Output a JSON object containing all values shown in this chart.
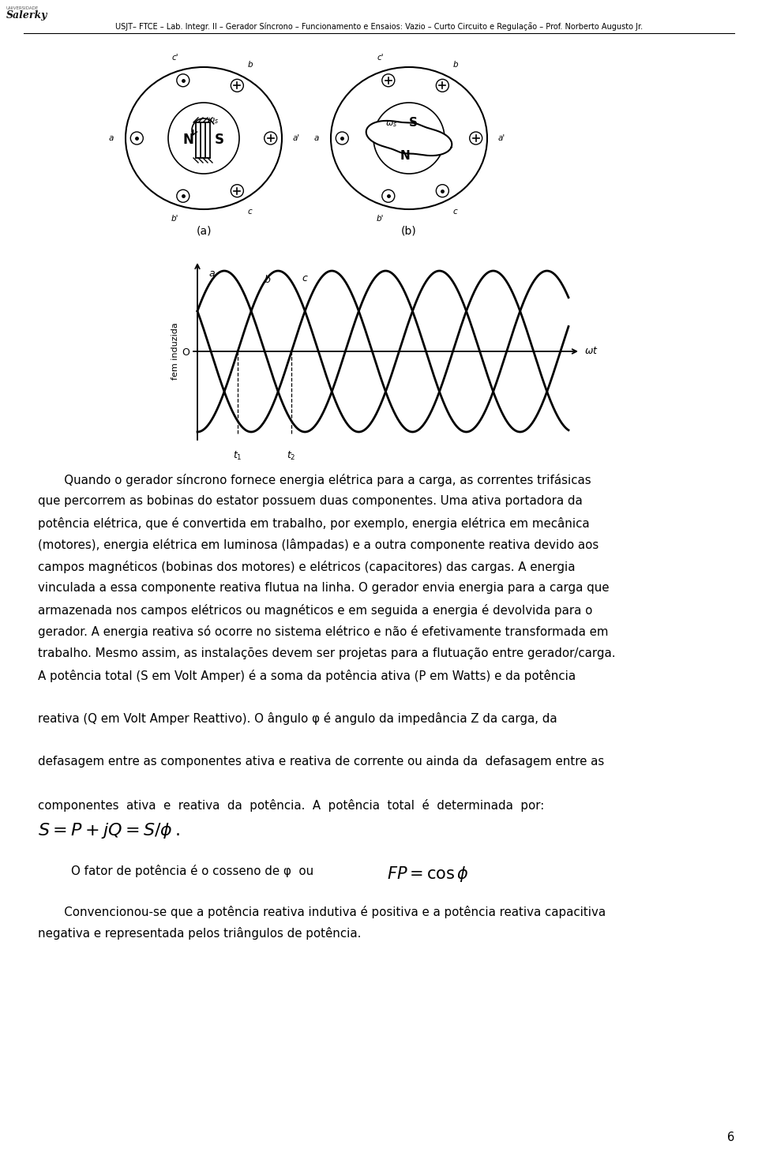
{
  "header_text": "USJT– FTCE – Lab. Integr. II – Gerador Síncrono – Funcionamento e Ensaios: Vazio – Curto Circuito e Regulação – Prof. Norberto Augusto Jr.",
  "page_number": "6",
  "bg": "#ffffff",
  "text_color": "#000000",
  "fig_a_label": "(a)",
  "fig_b_label": "(b)",
  "graph_ylabel": "fem induzida",
  "graph_origin": "O",
  "body_lines": [
    "       Quando o gerador síncrono fornece energia elétrica para a carga, as correntes trifásicas",
    "que percorrem as bobinas do estator possuem duas componentes. Uma ativa portadora da",
    "potência elétrica, que é convertida em trabalho, por exemplo, energia elétrica em mecânica",
    "(motores), energia elétrica em luminosa (lâmpadas) e a outra componente reativa devido aos",
    "campos magnéticos (bobinas dos motores) e elétricos (capacitores) das cargas. A energia",
    "vinculada a essa componente reativa flutua na linha. O gerador envia energia para a carga que",
    "armazenada nos campos elétricos ou magnéticos e em seguida a energia é devolvida para o",
    "gerador. A energia reativa só ocorre no sistema elétrico e não é efetivamente transformada em",
    "trabalho. Mesmo assim, as instalações devem ser projetas para a flutuação entre gerador/carga.",
    "A potência total (S em Volt Amper) é a soma da potência ativa (P em Watts) e da potência",
    "",
    "reativa (Q em Volt Amper Reattivo). O ângulo φ é angulo da impedância Z da carga, da",
    "",
    "defasagem entre as componentes ativa e reativa de corrente ou ainda da  defasagem entre as",
    "",
    "componentes  ativa  e  reativa  da  potência.  A  potência  total  é  determinada  por:"
  ],
  "formula1_line": "$S = P + jQ = S/\\phi\\,.$",
  "formula2_prefix": "O fator de potência é o cosseno de φ  ou",
  "formula2_eq": "$FP = \\cos\\phi$",
  "last_lines": [
    "       Convencionou-se que a potência reativa indutiva é positiva e a potência reativa capacitiva",
    "negativa e representada pelos triângulos de potência."
  ]
}
